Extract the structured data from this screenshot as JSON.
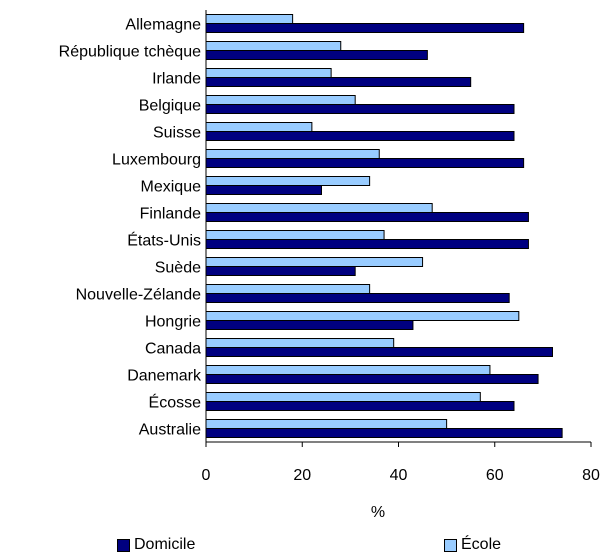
{
  "chart_data": {
    "type": "bar",
    "orientation": "horizontal",
    "categories": [
      "Allemagne",
      "République tchèque",
      "Irlande",
      "Belgique",
      "Suisse",
      "Luxembourg",
      "Mexique",
      "Finlande",
      "États-Unis",
      "Suède",
      "Nouvelle-Zélande",
      "Hongrie",
      "Canada",
      "Danemark",
      "Écosse",
      "Australie"
    ],
    "series": [
      {
        "name": "École",
        "color": "#99ccff",
        "values": [
          18,
          28,
          26,
          31,
          22,
          36,
          34,
          47,
          37,
          45,
          34,
          65,
          39,
          59,
          57,
          50
        ]
      },
      {
        "name": "Domicile",
        "color": "#000080",
        "values": [
          66,
          46,
          55,
          64,
          64,
          66,
          24,
          67,
          67,
          31,
          63,
          43,
          72,
          69,
          64,
          74
        ]
      }
    ],
    "xlabel": "%",
    "ylabel": "",
    "xlim": [
      0,
      80
    ],
    "xticks": [
      "0",
      "20",
      "40",
      "60",
      "80"
    ],
    "grid": false,
    "legend": {
      "position": "bottom",
      "items": [
        "Domicile",
        "École"
      ]
    }
  }
}
